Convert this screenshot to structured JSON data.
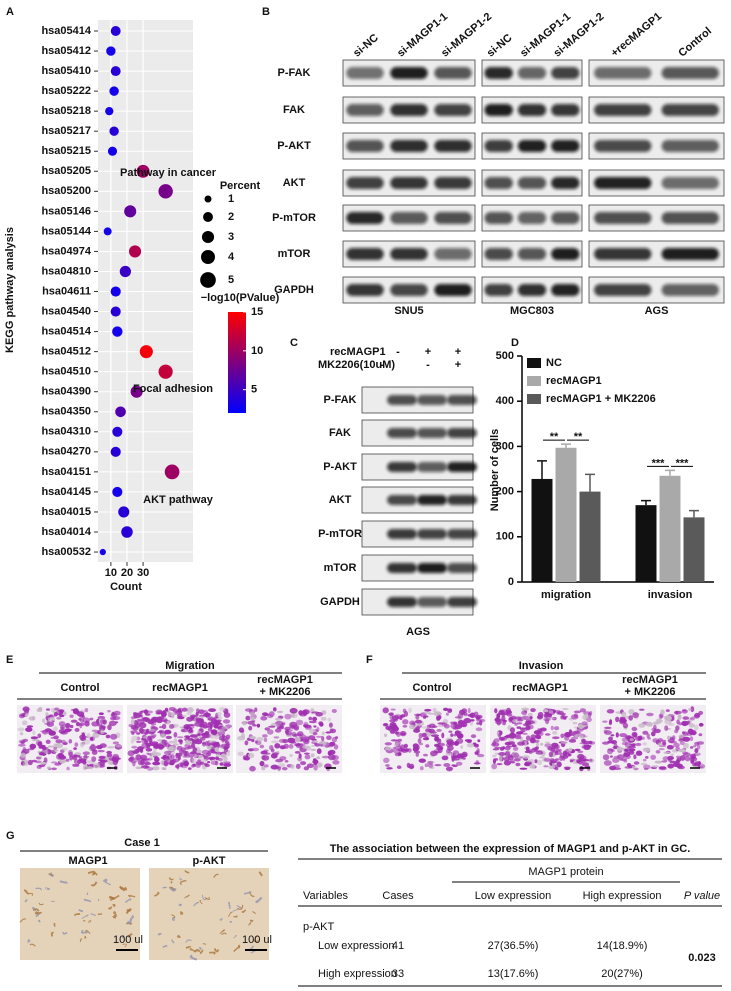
{
  "panel_labels": [
    "A",
    "B",
    "C",
    "D",
    "E",
    "F",
    "G"
  ],
  "chart_data": [
    {
      "type": "bubble",
      "ylabel": "KEGG pathway analysis",
      "xlabel": "Count",
      "categories": [
        "hsa05414",
        "hsa05412",
        "hsa05410",
        "hsa05222",
        "hsa05218",
        "hsa05217",
        "hsa05215",
        "hsa05205",
        "hsa05200",
        "hsa05146",
        "hsa05144",
        "hsa04974",
        "hsa04810",
        "hsa04611",
        "hsa04540",
        "hsa04514",
        "hsa04512",
        "hsa04510",
        "hsa04390",
        "hsa04350",
        "hsa04310",
        "hsa04270",
        "hsa04151",
        "hsa04145",
        "hsa04015",
        "hsa04014",
        "hsa00532"
      ],
      "values": [
        13,
        10,
        13,
        12,
        9,
        12,
        11,
        30,
        44,
        22,
        8,
        25,
        19,
        13,
        13,
        14,
        32,
        44,
        26,
        16,
        14,
        13,
        48,
        14,
        18,
        20,
        5
      ],
      "size_values": [
        2,
        1.8,
        2,
        1.8,
        1.4,
        1.8,
        1.7,
        3.4,
        4.2,
        3,
        1.3,
        3,
        2.6,
        2.1,
        2.1,
        2.2,
        3.5,
        4.1,
        3,
        2.3,
        2.1,
        2.1,
        4.4,
        2.1,
        2.5,
        2.7,
        0.8
      ],
      "color_values": [
        4,
        3,
        4,
        3,
        3,
        4,
        3,
        10,
        8,
        7,
        3,
        11,
        5,
        3,
        4,
        3,
        14.5,
        12,
        8,
        6,
        4,
        4,
        10,
        3,
        4,
        4,
        3
      ],
      "xlim": [
        2,
        61
      ],
      "xticks": [
        10,
        20,
        30
      ],
      "grid": true,
      "size_legend": {
        "title": "Percent",
        "values": [
          1,
          2,
          3,
          4,
          5
        ]
      },
      "color_legend": {
        "title": "−log10(PValue)",
        "lim": [
          2,
          15
        ],
        "ticks": [
          15,
          10,
          5
        ],
        "colors": [
          "#0000ff",
          "#ff0000"
        ]
      },
      "annotations": [
        "Pathway in cancer",
        "Focal adhesion",
        "AKT pathway"
      ]
    },
    {
      "type": "bar",
      "ylabel": "Number of cells",
      "categories": [
        "migration",
        "invasion"
      ],
      "series": [
        {
          "name": "NC",
          "color": "#111111",
          "values": [
            228,
            170
          ],
          "errors": [
            40,
            10
          ]
        },
        {
          "name": "recMAGP1",
          "color": "#a9a9a9",
          "values": [
            297,
            235
          ],
          "errors": [
            8,
            12
          ]
        },
        {
          "name": "recMAGP1 + MK2206",
          "color": "#5a5a5a",
          "values": [
            200,
            143
          ],
          "errors": [
            38,
            15
          ]
        }
      ],
      "ylim": [
        0,
        500
      ],
      "yticks": [
        0,
        100,
        200,
        300,
        400,
        500
      ],
      "legend": "top-left",
      "significance": [
        "**",
        "**",
        "***",
        "***"
      ]
    }
  ],
  "blot_b": {
    "rows": [
      "P-FAK",
      "FAK",
      "P-AKT",
      "AKT",
      "P-mTOR",
      "mTOR",
      "GAPDH"
    ],
    "groups": [
      {
        "name": "SNU5",
        "lanes": [
          "si-NC",
          "si-MAGP1-1",
          "si-MAGP1-2"
        ]
      },
      {
        "name": "MGC803",
        "lanes": [
          "si-NC",
          "si-MAGP1-1",
          "si-MAGP1-2"
        ]
      },
      {
        "name": "AGS",
        "lanes": [
          "+recMAGP1",
          "Control"
        ]
      }
    ]
  },
  "blot_c": {
    "treatments": [
      {
        "name": "recMAGP1",
        "signs": [
          "-",
          "+",
          "+"
        ]
      },
      {
        "name": "MK2206(10uM)",
        "signs": [
          "-",
          "-",
          "+"
        ]
      }
    ],
    "rows": [
      "P-FAK",
      "FAK",
      "P-AKT",
      "AKT",
      "P-mTOR",
      "mTOR",
      "GAPDH"
    ],
    "cell_line": "AGS"
  },
  "panel_e": {
    "title": "Migration",
    "columns": [
      [
        "Control"
      ],
      [
        "recMAGP1"
      ],
      [
        "recMAGP1",
        "+ MK2206"
      ]
    ]
  },
  "panel_f": {
    "title": "Invasion",
    "columns": [
      [
        "Control"
      ],
      [
        "recMAGP1"
      ],
      [
        "recMAGP1",
        "+ MK2206"
      ]
    ]
  },
  "panel_g": {
    "case": "Case 1",
    "stains": [
      "MAGP1",
      "p-AKT"
    ],
    "scale_label": "100 ul"
  },
  "table": {
    "title": "The association between the expression of MAGP1 and p-AKT in GC.",
    "group_header": "MAGP1 protein",
    "headers": [
      "Variables",
      "Cases",
      "Low expression",
      "High expression",
      "P value"
    ],
    "section": "p-AKT",
    "rows": [
      [
        "Low expression",
        41,
        "27(36.5%)",
        "14(18.9%)"
      ],
      [
        "High expression",
        33,
        "13(17.6%)",
        "20(27%)"
      ]
    ],
    "p_value": 0.023
  }
}
